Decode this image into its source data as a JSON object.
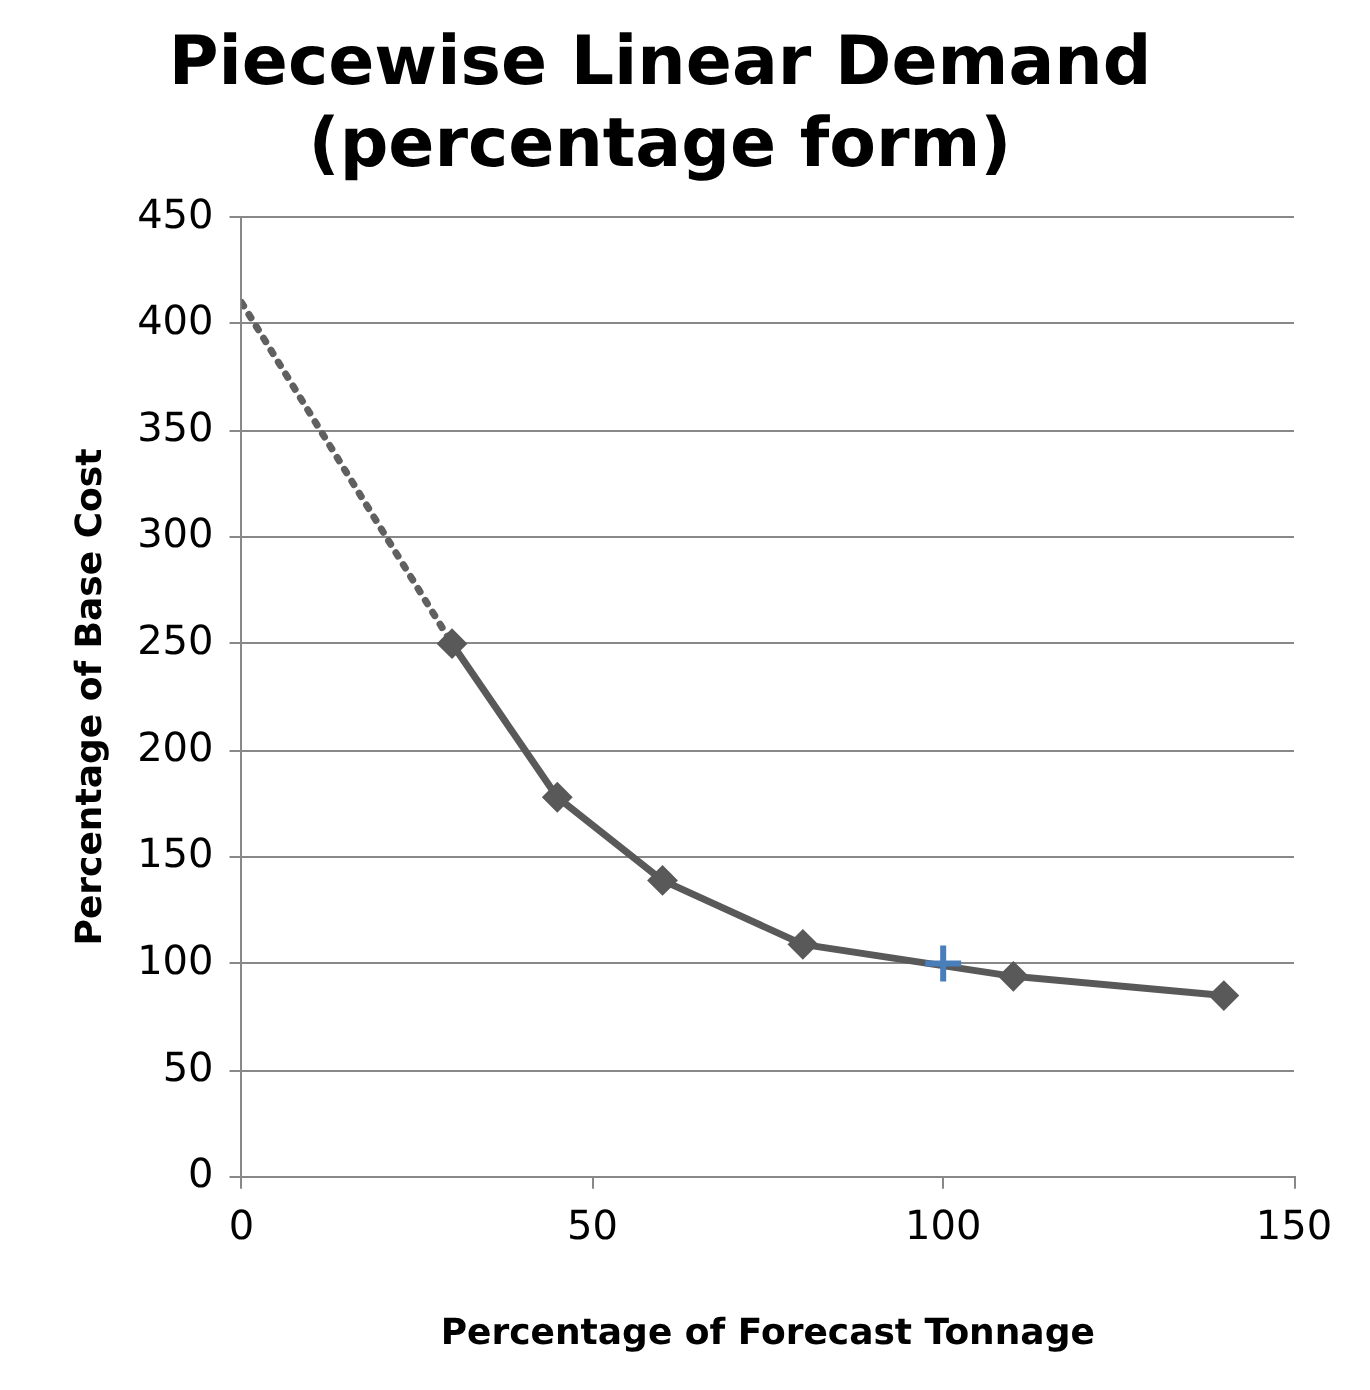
{
  "chart_data": {
    "type": "line",
    "title": "Piecewise Linear Demand\n(percentage form)",
    "xlabel": "Percentage of Forecast Tonnage",
    "ylabel": "Percentage of Base Cost",
    "xlim": [
      0,
      150
    ],
    "xticks": [
      0,
      50,
      100,
      150
    ],
    "ylim": [
      0,
      450
    ],
    "yticks": [
      0,
      50,
      100,
      150,
      200,
      250,
      300,
      350,
      400,
      450
    ],
    "grid": "y",
    "legend": false,
    "series": [
      {
        "type": "line",
        "color": "#606060",
        "x": [
          0,
          30
        ],
        "values": [
          410,
          250
        ],
        "line_style": "dotted"
      },
      {
        "type": "line",
        "color": "#595959",
        "x": [
          30,
          45,
          60,
          80,
          110,
          140
        ],
        "values": [
          250,
          178,
          139,
          109,
          94,
          85
        ],
        "line_style": "solid",
        "marker": "diamond"
      },
      {
        "color": "#4a7ebb",
        "x": [
          100
        ],
        "values": [
          100
        ],
        "marker": "cross"
      }
    ]
  }
}
